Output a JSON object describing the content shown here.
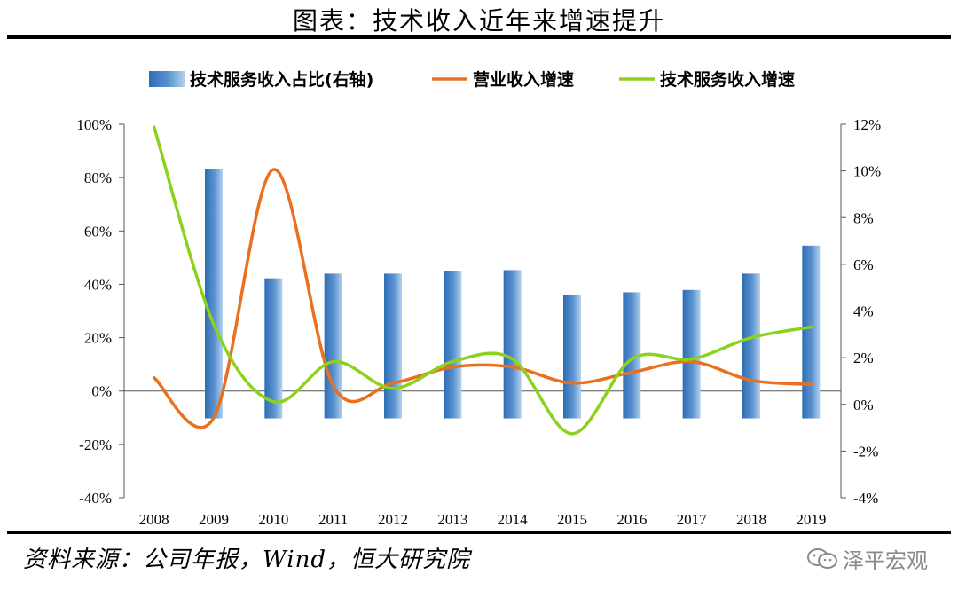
{
  "figure": {
    "title": "图表：技术收入近年来增速提升",
    "source": "资料来源：公司年报，Wind，恒大研究院",
    "watermark": "泽平宏观",
    "watermark_icon": "wechat-icon"
  },
  "colors": {
    "bar": "#3a78be",
    "bar_highlight": "#a9c8ea",
    "line_revenue": "#e8701e",
    "line_tech": "#8cd21c"
  },
  "chart_data": {
    "type": "bar+line",
    "categories": [
      "2008",
      "2009",
      "2010",
      "2011",
      "2012",
      "2013",
      "2014",
      "2015",
      "2016",
      "2017",
      "2018",
      "2019"
    ],
    "y_left": {
      "ticks": [
        "100%",
        "80%",
        "60%",
        "40%",
        "20%",
        "0%",
        "-20%",
        "-40%"
      ],
      "range": [
        -40,
        100
      ]
    },
    "y_right": {
      "ticks": [
        "12%",
        "10%",
        "8%",
        "6%",
        "4%",
        "2%",
        "0%",
        "-2%",
        "-4%"
      ],
      "range": [
        -4,
        12
      ]
    },
    "legend": [
      "技术服务收入占比(右轴)",
      "营业收入增速",
      "技术服务收入增速"
    ],
    "series": [
      {
        "name": "技术服务收入占比(右轴)",
        "type": "bar",
        "axis": "right",
        "values": [
          null,
          10.1,
          5.4,
          5.6,
          5.6,
          5.7,
          5.75,
          4.7,
          4.8,
          4.9,
          5.6,
          6.8
        ]
      },
      {
        "name": "营业收入增速",
        "type": "line",
        "axis": "left",
        "values": [
          5,
          -10,
          83,
          2,
          3,
          9,
          9,
          3,
          7,
          11,
          4,
          2.5
        ]
      },
      {
        "name": "技术服务收入增速",
        "type": "line",
        "axis": "left",
        "values": [
          99,
          25,
          -4,
          11,
          1,
          11,
          12,
          -16,
          12,
          12,
          20,
          24
        ]
      }
    ]
  }
}
